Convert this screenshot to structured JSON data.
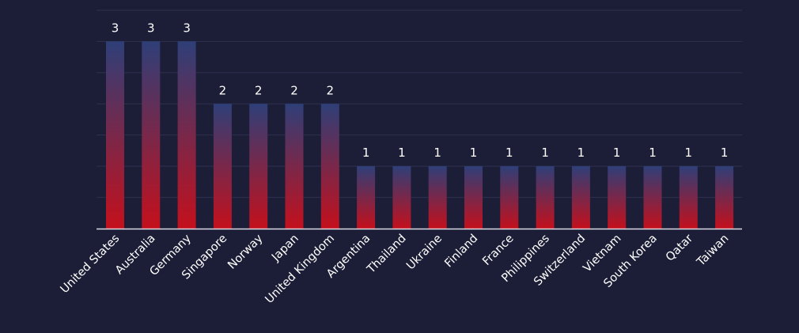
{
  "chart_data": {
    "type": "bar",
    "categories": [
      "United States",
      "Australia",
      "Germany",
      "Singapore",
      "Norway",
      "Japan",
      "United Kingdom",
      "Argentina",
      "Thailand",
      "Ukraine",
      "Finland",
      "France",
      "Philippines",
      "Switzerland",
      "Vietnam",
      "South Korea",
      "Qatar",
      "Taiwan"
    ],
    "values": [
      3,
      3,
      3,
      2,
      2,
      2,
      2,
      1,
      1,
      1,
      1,
      1,
      1,
      1,
      1,
      1,
      1,
      1
    ],
    "title": "",
    "xlabel": "",
    "ylabel": "",
    "ylim": [
      0,
      3.5
    ],
    "grid": true,
    "data_labels": true
  },
  "colors": {
    "background": "#1c1d36",
    "bar_top": "#2e3f78",
    "bar_bottom": "#c4101c",
    "grid": "#2f3150",
    "axis": "#d9d9e3",
    "label_text": "#ffffff"
  }
}
